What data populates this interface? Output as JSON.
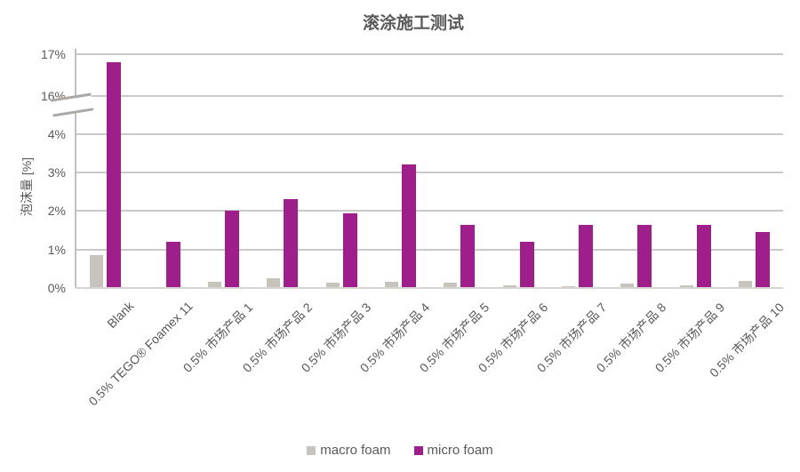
{
  "title": "滚涂施工测试",
  "y_axis_label": "泡沫量 [%]",
  "legend": {
    "items": [
      {
        "label": "macro foam",
        "color_key": "macro"
      },
      {
        "label": "micro foam",
        "color_key": "micro"
      }
    ]
  },
  "colors": {
    "macro": "#C7C3BD",
    "micro": "#A01E8C",
    "grid": "#C9C9C9",
    "axis": "#C2BFBC",
    "baseline": "#D7D4D1",
    "text": "#595959"
  },
  "chart_data": {
    "type": "bar",
    "title": "滚涂施工测试",
    "xlabel": "",
    "ylabel": "泡沫量 [%]",
    "grid": true,
    "legend_position": "bottom",
    "axis_break": {
      "enabled": true,
      "lower_ticks": [
        0,
        1,
        2,
        3,
        4
      ],
      "upper_ticks": [
        16,
        17
      ],
      "tick_suffix": "%"
    },
    "categories": [
      "Blank",
      "0.5% TEGO® Foamex 11",
      "0.5% 市场产品 1",
      "0.5% 市场产品 2",
      "0.5% 市场产品 3",
      "0.5% 市场产品 4",
      "0.5% 市场产品 5",
      "0.5% 市场产品 6",
      "0.5% 市场产品 7",
      "0.5% 市场产品 8",
      "0.5% 市场产品 9",
      "0.5% 市场产品 10"
    ],
    "series": [
      {
        "name": "macro foam",
        "color_key": "macro",
        "values": [
          0.85,
          0,
          0.17,
          0.26,
          0.15,
          0.17,
          0.13,
          0.07,
          0.05,
          0.12,
          0.07,
          0.18
        ]
      },
      {
        "name": "micro foam",
        "color_key": "micro",
        "values": [
          16.8,
          1.2,
          2.0,
          2.3,
          1.95,
          3.2,
          1.65,
          1.2,
          1.65,
          1.65,
          1.65,
          1.45
        ]
      }
    ]
  }
}
